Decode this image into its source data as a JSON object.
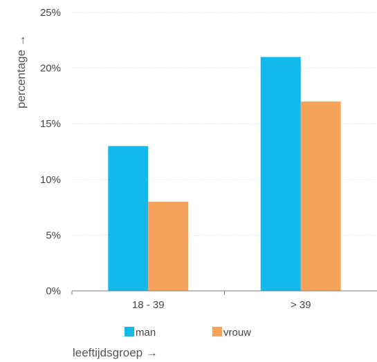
{
  "chart_data": {
    "type": "bar",
    "categories": [
      "18 - 39",
      "> 39"
    ],
    "series": [
      {
        "name": "man",
        "values": [
          13,
          21
        ],
        "color": "#14b9eb"
      },
      {
        "name": "vrouw",
        "values": [
          8,
          17
        ],
        "color": "#f7a35c"
      }
    ],
    "xlabel": "leeftijdsgroep →",
    "ylabel": "percentage →",
    "ylim": [
      0,
      25
    ],
    "yticks": [
      "0%",
      "5%",
      "10%",
      "15%",
      "20%",
      "25%"
    ],
    "grid": true,
    "legend_position": "bottom"
  }
}
